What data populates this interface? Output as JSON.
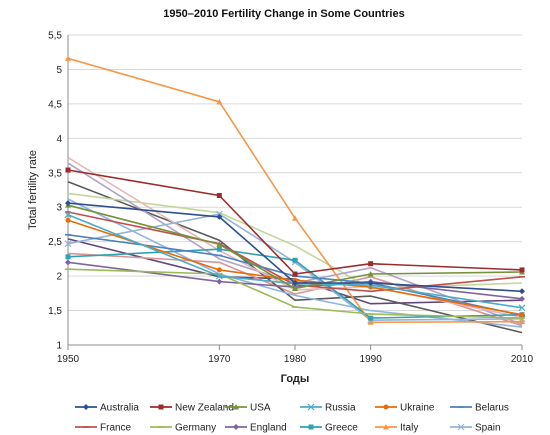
{
  "chart_data": {
    "type": "line",
    "title": "1950–2010 Fertility Change in Some Countries",
    "xlabel": "Годы",
    "ylabel": "Total fertility rate",
    "x": [
      1950,
      1970,
      1980,
      1990,
      2010
    ],
    "x_tick_labels": [
      "1950",
      "1970",
      "1980",
      "1990",
      "2010"
    ],
    "ylim": [
      1,
      5.5
    ],
    "y_ticks": [
      1,
      1.5,
      2,
      2.5,
      3,
      3.5,
      4,
      4.5,
      5,
      5.5
    ],
    "y_tick_labels": [
      "1",
      "1,5",
      "2",
      "2,5",
      "3",
      "3,5",
      "4",
      "4,5",
      "5",
      "5,5"
    ],
    "grid": "horizontal",
    "legend_position": "bottom",
    "series": [
      {
        "name": "Australia",
        "color": "#2f4f8f",
        "marker": "diamond",
        "values": [
          3.06,
          2.86,
          1.9,
          1.9,
          1.78
        ]
      },
      {
        "name": "New Zealand",
        "color": "#9b2c2c",
        "marker": "square",
        "values": [
          3.54,
          3.17,
          2.03,
          2.18,
          2.09
        ]
      },
      {
        "name": "USA",
        "color": "#76923c",
        "marker": "triangle",
        "values": [
          3.03,
          2.46,
          1.82,
          2.03,
          2.06
        ]
      },
      {
        "name": "Russia",
        "color": "#4bacc6",
        "marker": "x",
        "values": [
          2.89,
          2.0,
          1.89,
          1.87,
          1.54
        ]
      },
      {
        "name": "Ukraine",
        "color": "#e46c0a",
        "marker": "circle",
        "values": [
          2.81,
          2.09,
          1.94,
          1.84,
          1.44
        ]
      },
      {
        "name": "Belarus",
        "color": "#4f81bd",
        "marker": "dash",
        "values": [
          2.6,
          2.3,
          2.0,
          1.9,
          1.43
        ]
      },
      {
        "name": "France",
        "color": "#c0504d",
        "marker": "dash",
        "values": [
          2.93,
          2.47,
          1.87,
          1.78,
          1.99
        ]
      },
      {
        "name": "Germany",
        "color": "#9bbb59",
        "marker": "dash",
        "values": [
          2.1,
          2.03,
          1.55,
          1.45,
          1.39
        ]
      },
      {
        "name": "England",
        "color": "#8064a2",
        "marker": "diamond",
        "values": [
          2.2,
          1.92,
          1.84,
          1.92,
          1.67
        ]
      },
      {
        "name": "Greece",
        "color": "#31a1b5",
        "marker": "square",
        "values": [
          2.28,
          2.39,
          2.23,
          1.39,
          1.44
        ]
      },
      {
        "name": "Italy",
        "color": "#f79646",
        "marker": "triangle",
        "values": [
          5.16,
          4.53,
          2.84,
          1.33,
          1.34
        ]
      },
      {
        "name": "Spain",
        "color": "#95b3d7",
        "marker": "x",
        "values": [
          2.47,
          2.9,
          2.2,
          1.36,
          1.38
        ]
      },
      {
        "name": "",
        "color": "#e6b8b7",
        "marker": "none",
        "values": [
          3.72,
          2.37,
          1.8,
          1.85,
          1.4
        ]
      },
      {
        "name": "",
        "color": "#b3a2c7",
        "marker": "none",
        "values": [
          3.64,
          2.25,
          1.9,
          2.12,
          1.3
        ]
      },
      {
        "name": "",
        "color": "#c3d69b",
        "marker": "none",
        "values": [
          3.2,
          2.92,
          2.44,
          1.82,
          1.9
        ]
      },
      {
        "name": "",
        "color": "#8eb4e3",
        "marker": "none",
        "values": [
          3.12,
          2.03,
          1.72,
          1.5,
          1.26
        ]
      },
      {
        "name": "",
        "color": "#5a5a5a",
        "marker": "none",
        "values": [
          3.37,
          2.52,
          1.65,
          1.71,
          1.18
        ]
      },
      {
        "name": "",
        "color": "#d99694",
        "marker": "none",
        "values": [
          2.33,
          2.2,
          1.74,
          1.99,
          1.28
        ]
      },
      {
        "name": "",
        "color": "#60497a",
        "marker": "none",
        "values": [
          2.54,
          1.99,
          1.96,
          1.6,
          1.65
        ]
      }
    ]
  }
}
